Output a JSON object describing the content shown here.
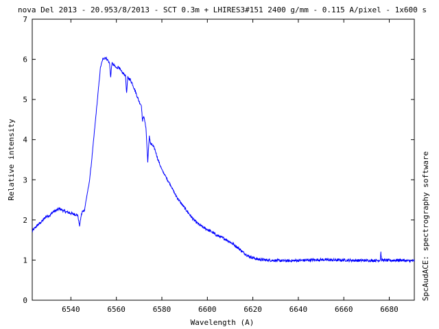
{
  "chart_data": {
    "type": "line",
    "title": "nova Del 2013 - 20.953/8/2013 - SCT 0.3m + LHIRES3#151 2400 g/mm - 0.115 A/pixel - 1x600 s",
    "xlabel": "Wavelength (A)",
    "ylabel": "Relative intensity",
    "right_label": "SpcAudACE: spectrography software",
    "xlim": [
      6523,
      6691
    ],
    "ylim": [
      0,
      7
    ],
    "x_ticks": [
      6540,
      6560,
      6580,
      6600,
      6620,
      6640,
      6660,
      6680
    ],
    "y_ticks": [
      0,
      1,
      2,
      3,
      4,
      5,
      6,
      7
    ],
    "grid": false,
    "series": [
      {
        "color": "#0000ff",
        "x": [
          6523,
          6525,
          6527,
          6529,
          6531,
          6532,
          6533,
          6535,
          6537,
          6539,
          6541,
          6543,
          6543.8,
          6544.5,
          6545,
          6546,
          6547,
          6548,
          6549,
          6550,
          6551,
          6552,
          6553,
          6554,
          6555,
          6556,
          6557,
          6557.5,
          6558,
          6559,
          6560,
          6561,
          6562,
          6563,
          6564,
          6564.5,
          6565,
          6566,
          6567,
          6568,
          6569,
          6570,
          6571,
          6571.5,
          6572,
          6573,
          6573.8,
          6574.5,
          6575,
          6576,
          6577,
          6578,
          6579,
          6580,
          6582,
          6584,
          6586,
          6588,
          6590,
          6592,
          6594,
          6596,
          6598,
          6600,
          6602,
          6604,
          6606,
          6608,
          6610,
          6612,
          6614,
          6616,
          6618,
          6620,
          6622,
          6624,
          6626,
          6630,
          6635,
          6640,
          6645,
          6650,
          6655,
          6660,
          6665,
          6670,
          6675,
          6676,
          6676.3,
          6676.6,
          6677,
          6680,
          6685,
          6688,
          6691
        ],
        "y": [
          1.72,
          1.85,
          1.95,
          2.08,
          2.12,
          2.2,
          2.22,
          2.28,
          2.22,
          2.18,
          2.15,
          2.12,
          1.85,
          2.1,
          2.2,
          2.25,
          2.6,
          2.9,
          3.4,
          4.0,
          4.6,
          5.2,
          5.8,
          6.0,
          6.05,
          6.0,
          5.9,
          5.55,
          5.9,
          5.85,
          5.78,
          5.82,
          5.7,
          5.65,
          5.6,
          5.15,
          5.55,
          5.5,
          5.4,
          5.25,
          5.1,
          4.95,
          4.85,
          4.45,
          4.6,
          4.3,
          3.45,
          4.1,
          3.9,
          3.85,
          3.75,
          3.55,
          3.4,
          3.25,
          3.05,
          2.85,
          2.62,
          2.45,
          2.3,
          2.15,
          2.0,
          1.9,
          1.82,
          1.76,
          1.7,
          1.62,
          1.57,
          1.52,
          1.45,
          1.37,
          1.28,
          1.18,
          1.1,
          1.06,
          1.02,
          1.01,
          1.0,
          0.99,
          0.98,
          0.99,
          1.0,
          1.01,
          1.0,
          1.0,
          0.99,
          0.99,
          0.99,
          1.0,
          1.2,
          1.0,
          1.0,
          0.99,
          1.0,
          0.98,
          0.98
        ]
      }
    ]
  }
}
